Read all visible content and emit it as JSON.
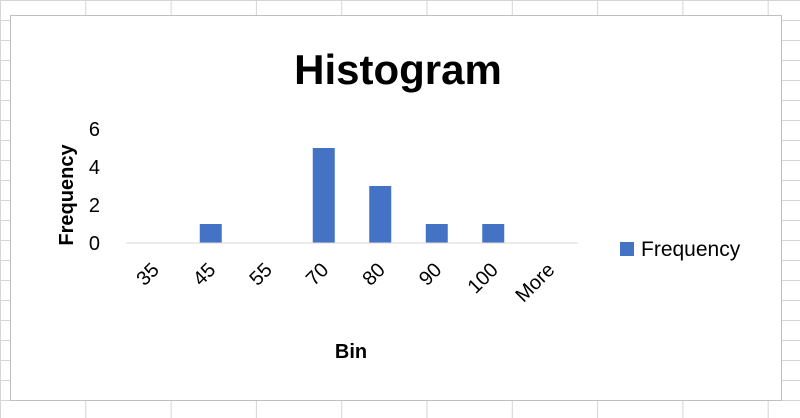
{
  "chart_data": {
    "type": "bar",
    "title": "Histogram",
    "xlabel": "Bin",
    "ylabel": "Frequency",
    "categories": [
      "35",
      "45",
      "55",
      "70",
      "80",
      "90",
      "100",
      "More"
    ],
    "series": [
      {
        "name": "Frequency",
        "values": [
          0,
          1,
          0,
          5,
          3,
          1,
          1,
          0
        ],
        "color": "#4472C4"
      }
    ],
    "ylim": [
      0,
      6
    ],
    "yticks": [
      0,
      2,
      4,
      6
    ],
    "grid": false,
    "legend": "right"
  }
}
